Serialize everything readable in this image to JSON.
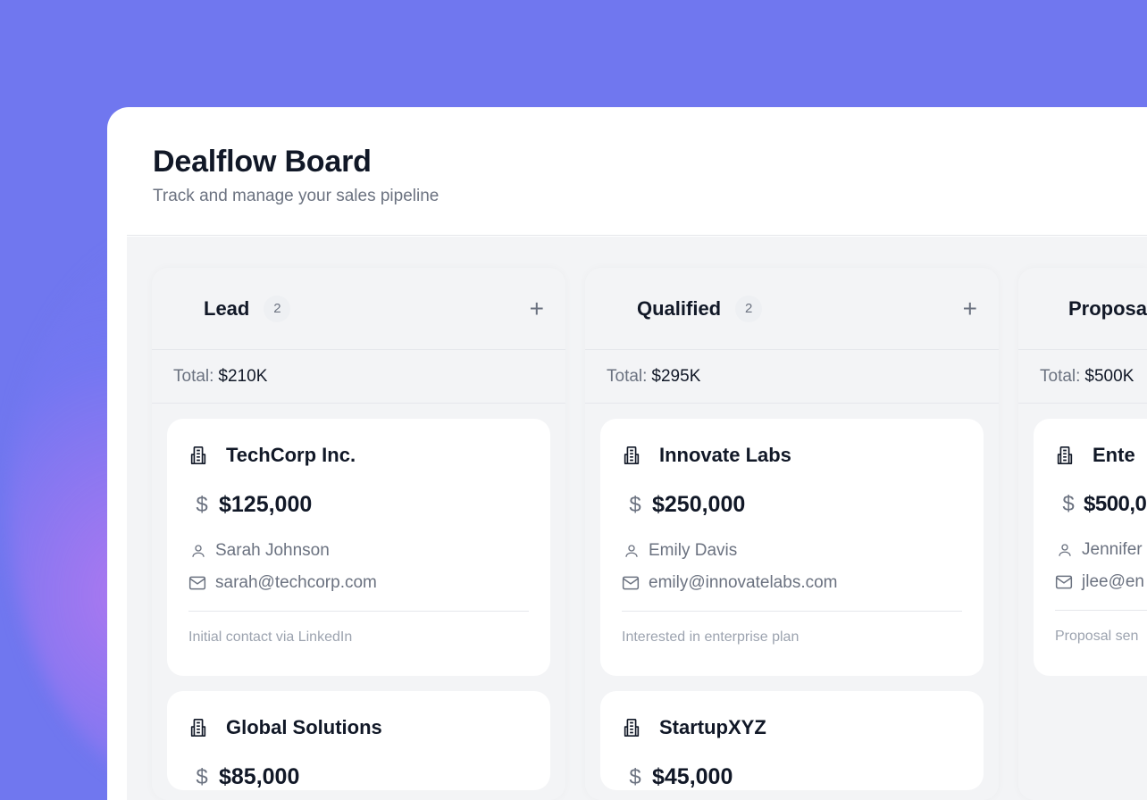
{
  "header": {
    "title": "Dealflow Board",
    "subtitle": "Track and manage your sales pipeline"
  },
  "colors": {
    "background": "#7077ef",
    "board": "#f3f4f6",
    "text": "#111827",
    "muted": "#6b7280"
  },
  "columns": [
    {
      "name": "Lead",
      "count": "2",
      "add_label": "+",
      "total_label": "Total:",
      "total": "$210K",
      "cards": [
        {
          "company": "TechCorp Inc.",
          "amount": "$125,000",
          "contact": "Sarah Johnson",
          "email": "sarah@techcorp.com",
          "note": "Initial contact via LinkedIn"
        },
        {
          "company": "Global Solutions",
          "amount": "$85,000",
          "contact": "",
          "email": "",
          "note": ""
        }
      ]
    },
    {
      "name": "Qualified",
      "count": "2",
      "add_label": "+",
      "total_label": "Total:",
      "total": "$295K",
      "cards": [
        {
          "company": "Innovate Labs",
          "amount": "$250,000",
          "contact": "Emily Davis",
          "email": "emily@innovatelabs.com",
          "note": "Interested in enterprise plan"
        },
        {
          "company": "StartupXYZ",
          "amount": "$45,000",
          "contact": "",
          "email": "",
          "note": ""
        }
      ]
    },
    {
      "name": "Proposa",
      "count": "",
      "add_label": "",
      "total_label": "Total:",
      "total": "$500K",
      "cards": [
        {
          "company": "Ente",
          "amount": "$500,0",
          "contact": "Jennifer",
          "email": "jlee@en",
          "note": "Proposal sen"
        }
      ]
    }
  ],
  "icons": {
    "building": "building-icon",
    "dollar": "dollar-icon",
    "user": "user-icon",
    "mail": "mail-icon",
    "plus": "plus-icon"
  }
}
